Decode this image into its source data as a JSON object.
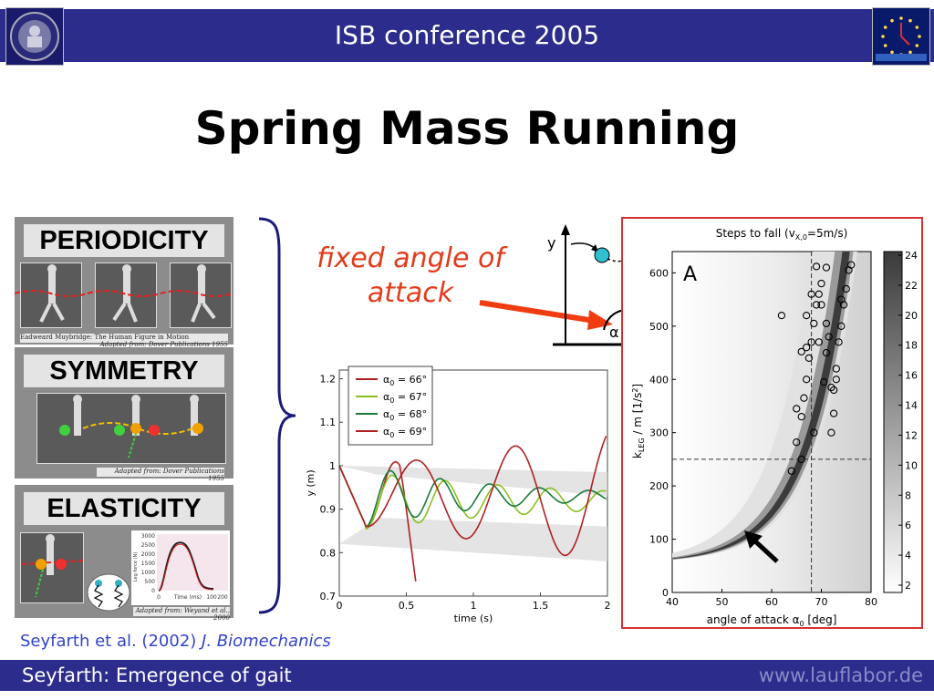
{
  "header": {
    "title": "ISB conference 2005"
  },
  "slide": {
    "title": "Spring Mass Running"
  },
  "panels": [
    {
      "label": "PERIODICITY",
      "color": "#a01818",
      "caption_left": "Eadweard Muybridge:  The Human Figure in Motion",
      "caption_right": "Adapted from: Dover Publications 1955"
    },
    {
      "label": "SYMMETRY",
      "color": "#1a1aa8",
      "caption_right": "Adapted from: Dover Publications 1955"
    },
    {
      "label": "ELASTICITY",
      "color": "#127a28",
      "caption_right": "Adapted from: Weyand et al., 2000"
    }
  ],
  "elasticity_inset": {
    "ylabel": "Leg force (N)",
    "xlabel": "Time (ms)",
    "yticks": [
      "3000",
      "2500",
      "2000",
      "1500",
      "1000",
      "500",
      "0"
    ],
    "xticks": [
      "0",
      "100",
      "200"
    ]
  },
  "annotation": {
    "line1": "fixed angle of",
    "line2": "attack"
  },
  "diagram": {
    "y_label": "y",
    "alpha_label": "α"
  },
  "chart_data": [
    {
      "type": "line",
      "xlabel": "time (s)",
      "ylabel": "y (m)",
      "xlim": [
        0,
        2
      ],
      "ylim": [
        0.7,
        1.22
      ],
      "xticks": [
        "0",
        "0.5",
        "1",
        "1.5",
        "2"
      ],
      "yticks": [
        "0.7",
        "0.8",
        "0.9",
        "1",
        "1.1",
        "1.2"
      ],
      "legend_position": "top-left",
      "series": [
        {
          "name": "α0 = 66°",
          "color": "#b02020"
        },
        {
          "name": "α0 = 67°",
          "color": "#88c020"
        },
        {
          "name": "α0 = 68°",
          "color": "#1a7a3a"
        },
        {
          "name": "α0 = 69°",
          "color": "#b02020"
        }
      ],
      "legend": [
        {
          "sym": "α",
          "sub": "0",
          "rest": " = 66°"
        },
        {
          "sym": "α",
          "sub": "0",
          "rest": " = 67°"
        },
        {
          "sym": "α",
          "sub": "0",
          "rest": " = 68°"
        },
        {
          "sym": "α",
          "sub": "0",
          "rest": " = 69°"
        }
      ]
    },
    {
      "type": "heatmap",
      "panel_letter": "A",
      "title": "Steps to fall (vX,0=5m/s)",
      "title_parts": {
        "main": "Steps to fall (v",
        "sub": "X,0",
        "rest": "=5m/s)"
      },
      "xlabel": "angle of attack α0 [deg]",
      "xlabel_parts": {
        "main": "angle of attack ",
        "sym": "α",
        "sub": "0",
        "rest": " [deg]"
      },
      "ylabel": "kLEG / m  [1/s²]",
      "ylabel_parts": {
        "main": "k",
        "sub": "LEG",
        "rest": " / m  [1/s",
        "sup": "2",
        "end": "]"
      },
      "xlim": [
        40,
        80
      ],
      "ylim": [
        0,
        640
      ],
      "xticks": [
        "40",
        "50",
        "60",
        "70",
        "80"
      ],
      "yticks": [
        "0",
        "100",
        "200",
        "300",
        "400",
        "500",
        "600"
      ],
      "colorbar_ticks": [
        "24",
        "22",
        "20",
        "18",
        "16",
        "14",
        "12",
        "10",
        "8",
        "6",
        "4",
        "2"
      ],
      "reference_lines": {
        "x": 68,
        "y": 250
      }
    }
  ],
  "citation": {
    "authors": "Seyfarth et al. (2002)",
    "journal": "J. Biomechanics"
  },
  "footer": {
    "left": "Seyfarth: Emergence of gait",
    "right": "www.lauflabor.de"
  }
}
